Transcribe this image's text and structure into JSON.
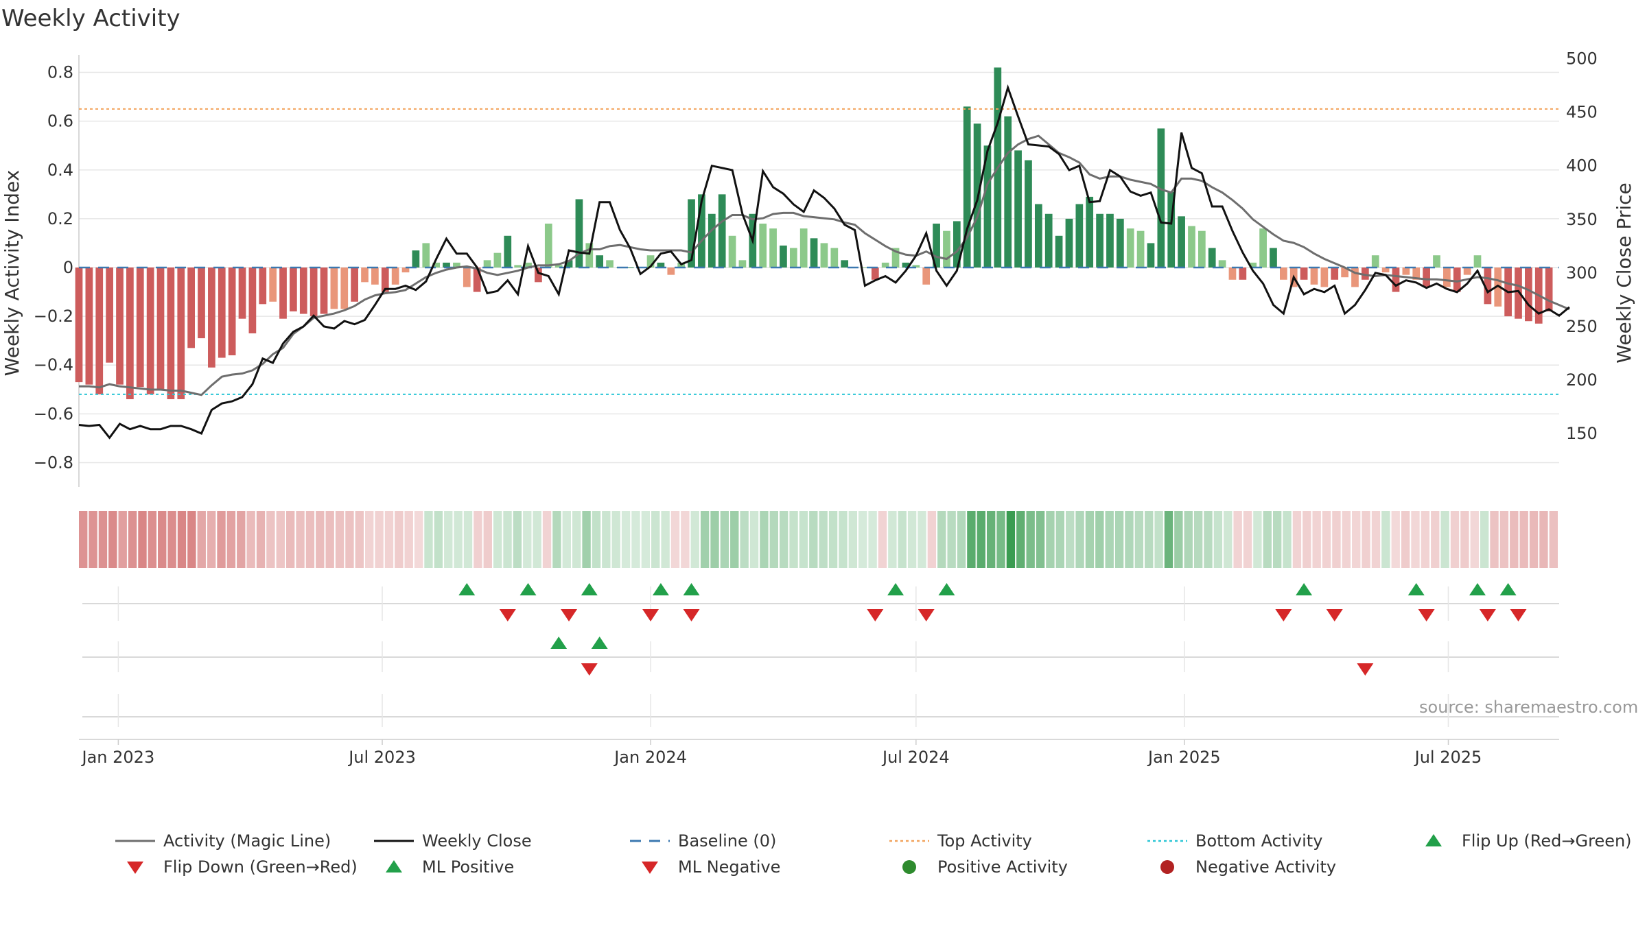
{
  "chart_data": {
    "type": "bar",
    "title": "Weekly Activity",
    "ylabel_left": "Weekly Activity Index",
    "ylabel_right": "Weekly Close Price",
    "ylim_left": [
      -0.9,
      0.9
    ],
    "ylim_right": [
      100,
      510
    ],
    "yticks_left": [
      {
        "value": 0.8,
        "label": "0.8"
      },
      {
        "value": 0.6,
        "label": "0.6"
      },
      {
        "value": 0.4,
        "label": "0.4"
      },
      {
        "value": 0.2,
        "label": "0.2"
      },
      {
        "value": 0,
        "label": "0"
      },
      {
        "value": -0.2,
        "label": "−0.2"
      },
      {
        "value": -0.4,
        "label": "−0.4"
      },
      {
        "value": -0.6,
        "label": "−0.6"
      },
      {
        "value": -0.8,
        "label": "−0.8"
      }
    ],
    "yticks_right": [
      {
        "value": 500,
        "label": "500"
      },
      {
        "value": 450,
        "label": "450"
      },
      {
        "value": 400,
        "label": "400"
      },
      {
        "value": 350,
        "label": "350"
      },
      {
        "value": 300,
        "label": "300"
      },
      {
        "value": 250,
        "label": "250"
      },
      {
        "value": 200,
        "label": "200"
      },
      {
        "value": 150,
        "label": "150"
      }
    ],
    "x_start": "2022-12-05",
    "x_end": "2025-09-15",
    "xticks": [
      {
        "date": "2023-01-01",
        "label": "Jan 2023"
      },
      {
        "date": "2023-07-01",
        "label": "Jul 2023"
      },
      {
        "date": "2024-01-01",
        "label": "Jan 2024"
      },
      {
        "date": "2024-07-01",
        "label": "Jul 2024"
      },
      {
        "date": "2025-01-01",
        "label": "Jan 2025"
      },
      {
        "date": "2025-07-01",
        "label": "Jul 2025"
      }
    ],
    "top_activity": 0.65,
    "bottom_activity": -0.52,
    "baseline": 0,
    "activity": [
      -0.47,
      -0.48,
      -0.52,
      -0.39,
      -0.48,
      -0.54,
      -0.49,
      -0.52,
      -0.5,
      -0.54,
      -0.54,
      -0.33,
      -0.29,
      -0.41,
      -0.37,
      -0.36,
      -0.21,
      -0.27,
      -0.15,
      -0.14,
      -0.21,
      -0.18,
      -0.19,
      -0.2,
      -0.19,
      -0.17,
      -0.17,
      -0.14,
      -0.06,
      -0.07,
      -0.1,
      -0.07,
      -0.02,
      0.07,
      0.1,
      0.02,
      0.02,
      0.02,
      -0.08,
      -0.1,
      0.03,
      0.06,
      0.13,
      0.01,
      0.02,
      -0.06,
      0.18,
      0.01,
      0.03,
      0.28,
      0.1,
      0.05,
      0.03,
      0,
      0,
      0,
      0.05,
      0.02,
      -0.03,
      0.02,
      0.28,
      0.3,
      0.22,
      0.3,
      0.13,
      0.03,
      0.22,
      0.18,
      0.16,
      0.09,
      0.08,
      0.16,
      0.12,
      0.1,
      0.08,
      0.03,
      0,
      0,
      -0.05,
      0.02,
      0.08,
      0.02,
      0.01,
      -0.07,
      0.18,
      0.15,
      0.19,
      0.66,
      0.59,
      0.5,
      0.82,
      0.62,
      0.48,
      0.44,
      0.26,
      0.22,
      0.13,
      0.2,
      0.26,
      0.29,
      0.22,
      0.22,
      0.2,
      0.16,
      0.15,
      0.1,
      0.57,
      0.31,
      0.21,
      0.17,
      0.15,
      0.08,
      0.03,
      -0.05,
      -0.05,
      0.02,
      0.16,
      0.08,
      -0.05,
      -0.08,
      -0.05,
      -0.07,
      -0.08,
      -0.05,
      -0.04,
      -0.08,
      -0.05,
      0.05,
      -0.02,
      -0.1,
      -0.03,
      -0.05,
      -0.08,
      0.05,
      -0.08,
      -0.1,
      -0.03,
      0.05,
      -0.15,
      -0.16,
      -0.2,
      -0.21,
      -0.22,
      -0.23,
      -0.18
    ],
    "weekly_close": [
      158,
      157,
      158,
      146,
      159,
      154,
      157,
      154,
      154,
      157,
      157,
      154,
      150,
      172,
      178,
      180,
      184,
      196,
      220,
      216,
      234,
      245,
      250,
      260,
      250,
      248,
      255,
      252,
      256,
      270,
      285,
      285,
      288,
      284,
      292,
      313,
      332,
      318,
      318,
      305,
      281,
      283,
      293,
      280,
      325,
      300,
      297,
      280,
      321,
      319,
      318,
      366,
      366,
      340,
      323,
      299,
      306,
      318,
      320,
      308,
      312,
      367,
      400,
      398,
      396,
      355,
      330,
      395,
      380,
      374,
      364,
      357,
      377,
      370,
      360,
      345,
      340,
      288,
      293,
      297,
      291,
      302,
      316,
      337,
      302,
      288,
      302,
      341,
      368,
      414,
      440,
      473,
      446,
      420,
      419,
      418,
      411,
      396,
      400,
      366,
      367,
      396,
      390,
      376,
      372,
      375,
      347,
      346,
      431,
      398,
      393,
      362,
      362,
      339,
      319,
      302,
      290,
      270,
      262,
      296,
      280,
      285,
      282,
      288,
      262,
      270,
      284,
      300,
      298,
      288,
      293,
      291,
      286,
      290,
      285,
      282,
      290,
      302,
      282,
      288,
      282,
      283,
      270,
      262,
      266,
      260,
      268
    ],
    "magic_line": [
      194,
      194,
      193,
      196,
      194,
      193,
      192,
      191,
      191,
      190,
      190,
      188,
      186,
      195,
      203,
      205,
      206,
      209,
      215,
      224,
      230,
      243,
      250,
      258,
      260,
      262,
      265,
      269,
      275,
      279,
      281,
      282,
      284,
      290,
      296,
      300,
      303,
      305,
      306,
      304,
      300,
      298,
      300,
      302,
      305,
      307,
      307,
      308,
      311,
      318,
      322,
      322,
      325,
      326,
      324,
      322,
      321,
      321,
      321,
      321,
      319,
      330,
      340,
      348,
      354,
      354,
      350,
      351,
      355,
      356,
      356,
      353,
      352,
      351,
      350,
      347,
      345,
      337,
      331,
      325,
      320,
      317,
      316,
      320,
      315,
      313,
      320,
      333,
      352,
      383,
      398,
      412,
      420,
      425,
      428,
      420,
      412,
      408,
      403,
      392,
      388,
      390,
      390,
      387,
      385,
      383,
      378,
      375,
      388,
      388,
      386,
      380,
      375,
      368,
      360,
      350,
      343,
      336,
      330,
      328,
      324,
      318,
      313,
      309,
      305,
      300,
      298,
      297,
      298,
      297,
      296,
      295,
      294,
      294,
      293,
      292,
      294,
      296,
      295,
      293,
      290,
      288,
      284,
      279,
      274,
      270,
      266
    ],
    "heat_strip_blocks": 150,
    "flip_up_dates": [
      "2023-08-28",
      "2023-10-09",
      "2023-11-20",
      "2024-01-08",
      "2024-01-29",
      "2024-06-17",
      "2024-07-22",
      "2025-03-24",
      "2025-06-09",
      "2025-07-21",
      "2025-08-11"
    ],
    "flip_down_dates": [
      "2023-09-25",
      "2023-11-06",
      "2024-01-01",
      "2024-01-29",
      "2024-06-03",
      "2024-07-08",
      "2025-03-10",
      "2025-04-14",
      "2025-06-16",
      "2025-07-28",
      "2025-08-18"
    ],
    "ml_positive_dates": [
      "2023-10-30",
      "2023-11-27"
    ],
    "ml_negative_dates": [
      "2023-11-20",
      "2025-05-05"
    ],
    "legend": [
      {
        "label": "Activity (Magic Line)",
        "marker": "line",
        "color": "#6e6e6e"
      },
      {
        "label": "Weekly Close",
        "marker": "line",
        "color": "#111111"
      },
      {
        "label": "Baseline (0)",
        "marker": "dash",
        "color": "#3b78b0"
      },
      {
        "label": "Top Activity",
        "marker": "dot-line",
        "color": "#f2a35c"
      },
      {
        "label": "Bottom Activity",
        "marker": "dot-line",
        "color": "#2bc6d6"
      },
      {
        "label": "Flip Up (Red→Green)",
        "marker": "tri-up",
        "color": "#22a04a"
      },
      {
        "label": "Flip Down (Green→Red)",
        "marker": "tri-down",
        "color": "#d62728"
      },
      {
        "label": "ML Positive",
        "marker": "tri-up",
        "color": "#22a04a"
      },
      {
        "label": "ML Negative",
        "marker": "tri-down",
        "color": "#d62728"
      },
      {
        "label": "Positive Activity",
        "marker": "circle",
        "color": "#2e8b2e"
      },
      {
        "label": "Negative Activity",
        "marker": "circle",
        "color": "#b22222"
      }
    ],
    "source": "source: sharemaestro.com",
    "colors": {
      "pos_strong": "#2e8b57",
      "pos_light": "#8cc98a",
      "neg_strong": "#cd5c5c",
      "neg_light": "#e9967a",
      "grid": "#e6e6e6",
      "magic_line": "#6e6e6e",
      "close": "#111111",
      "top": "#f2a35c",
      "bottom": "#2bc6d6",
      "baseline": "#3b78b0"
    }
  }
}
